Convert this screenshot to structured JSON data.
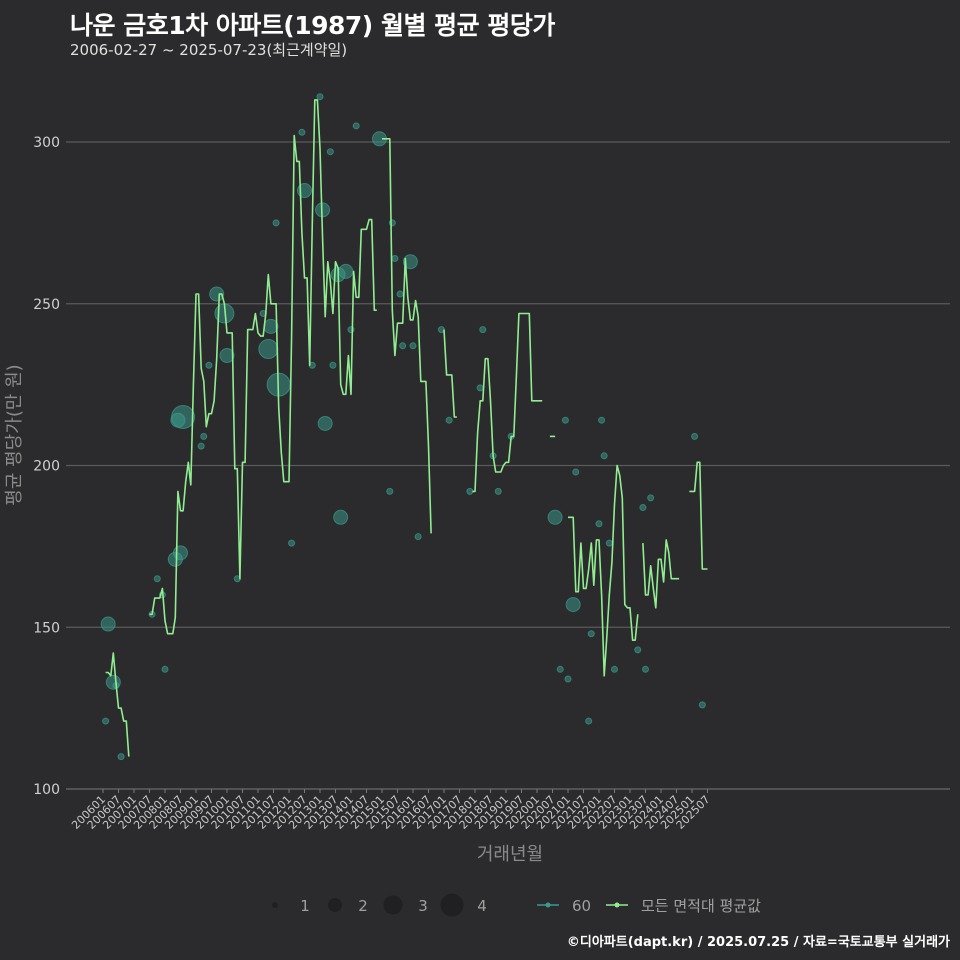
{
  "header": {
    "title": "나운 금호1차 아파트(1987) 월별 평균 평당가",
    "subtitle": "2006-02-27 ~ 2025-07-23(최근계약일)"
  },
  "footer": {
    "credit": "©디아파트(dapt.kr) / 2025.07.25 / 자료=국토교통부 실거래가"
  },
  "colors": {
    "background": "#2b2b2d",
    "grid": "#5a5a5a",
    "line": "#90ee90",
    "points": "#3a9b8c"
  },
  "chart_data": {
    "type": "line",
    "xlabel": "거래년월",
    "ylabel": "평균 평당가(만 원)",
    "ylim": [
      100,
      315
    ],
    "yticks": [
      100,
      150,
      200,
      250,
      300
    ],
    "x_tick_labels": [
      "200601",
      "200607",
      "200701",
      "200707",
      "200801",
      "200807",
      "200901",
      "200907",
      "201001",
      "201007",
      "201101",
      "201107",
      "201201",
      "201207",
      "201301",
      "201307",
      "201401",
      "201407",
      "201501",
      "201507",
      "201601",
      "201607",
      "201701",
      "201707",
      "201801",
      "201807",
      "201901",
      "201907",
      "202001",
      "202007",
      "202101",
      "202107",
      "202201",
      "202207",
      "202301",
      "202307",
      "202401",
      "202407",
      "202501",
      "202507"
    ],
    "legend": {
      "size_title": "",
      "sizes": [
        {
          "label": "1",
          "size": 1
        },
        {
          "label": "2",
          "size": 2
        },
        {
          "label": "3",
          "size": 3
        },
        {
          "label": "4",
          "size": 4
        }
      ],
      "series": [
        {
          "label": "60"
        },
        {
          "label": "모든 면적대 평균값"
        }
      ]
    },
    "points": [
      {
        "x": "2006-02",
        "y": 121,
        "n": 1
      },
      {
        "x": "2006-03",
        "y": 151,
        "n": 2
      },
      {
        "x": "2006-05",
        "y": 133,
        "n": 2
      },
      {
        "x": "2006-06",
        "y": 132,
        "n": 1
      },
      {
        "x": "2006-08",
        "y": 110,
        "n": 1
      },
      {
        "x": "2007-08",
        "y": 154,
        "n": 1
      },
      {
        "x": "2007-10",
        "y": 165,
        "n": 1
      },
      {
        "x": "2007-12",
        "y": 160,
        "n": 1
      },
      {
        "x": "2008-01",
        "y": 137,
        "n": 1
      },
      {
        "x": "2008-05",
        "y": 171,
        "n": 2
      },
      {
        "x": "2008-06",
        "y": 214,
        "n": 2
      },
      {
        "x": "2008-07",
        "y": 173,
        "n": 2
      },
      {
        "x": "2008-08",
        "y": 215,
        "n": 4
      },
      {
        "x": "2009-03",
        "y": 206,
        "n": 1
      },
      {
        "x": "2009-04",
        "y": 209,
        "n": 1
      },
      {
        "x": "2009-06",
        "y": 231,
        "n": 1
      },
      {
        "x": "2009-09",
        "y": 253,
        "n": 2
      },
      {
        "x": "2009-12",
        "y": 247,
        "n": 3
      },
      {
        "x": "2010-01",
        "y": 234,
        "n": 2
      },
      {
        "x": "2010-05",
        "y": 165,
        "n": 1
      },
      {
        "x": "2011-03",
        "y": 247,
        "n": 1
      },
      {
        "x": "2011-05",
        "y": 236,
        "n": 3
      },
      {
        "x": "2011-06",
        "y": 243,
        "n": 2
      },
      {
        "x": "2011-08",
        "y": 275,
        "n": 1
      },
      {
        "x": "2011-09",
        "y": 225,
        "n": 4
      },
      {
        "x": "2012-02",
        "y": 176,
        "n": 1
      },
      {
        "x": "2012-06",
        "y": 303,
        "n": 1
      },
      {
        "x": "2012-07",
        "y": 285,
        "n": 2
      },
      {
        "x": "2012-10",
        "y": 231,
        "n": 1
      },
      {
        "x": "2013-01",
        "y": 314,
        "n": 1
      },
      {
        "x": "2013-02",
        "y": 279,
        "n": 2
      },
      {
        "x": "2013-03",
        "y": 213,
        "n": 2
      },
      {
        "x": "2013-05",
        "y": 297,
        "n": 1
      },
      {
        "x": "2013-06",
        "y": 231,
        "n": 1
      },
      {
        "x": "2013-08",
        "y": 259,
        "n": 2
      },
      {
        "x": "2013-09",
        "y": 184,
        "n": 2
      },
      {
        "x": "2013-11",
        "y": 260,
        "n": 2
      },
      {
        "x": "2014-01",
        "y": 242,
        "n": 1
      },
      {
        "x": "2014-03",
        "y": 305,
        "n": 1
      },
      {
        "x": "2014-12",
        "y": 301,
        "n": 2
      },
      {
        "x": "2015-04",
        "y": 192,
        "n": 1
      },
      {
        "x": "2015-05",
        "y": 275,
        "n": 1
      },
      {
        "x": "2015-06",
        "y": 264,
        "n": 1
      },
      {
        "x": "2015-08",
        "y": 253,
        "n": 1
      },
      {
        "x": "2015-09",
        "y": 237,
        "n": 1
      },
      {
        "x": "2015-12",
        "y": 263,
        "n": 2
      },
      {
        "x": "2016-01",
        "y": 237,
        "n": 1
      },
      {
        "x": "2016-03",
        "y": 178,
        "n": 1
      },
      {
        "x": "2016-12",
        "y": 242,
        "n": 1
      },
      {
        "x": "2017-03",
        "y": 214,
        "n": 1
      },
      {
        "x": "2017-11",
        "y": 192,
        "n": 1
      },
      {
        "x": "2018-03",
        "y": 224,
        "n": 1
      },
      {
        "x": "2018-04",
        "y": 242,
        "n": 1
      },
      {
        "x": "2018-08",
        "y": 203,
        "n": 1
      },
      {
        "x": "2018-10",
        "y": 192,
        "n": 1
      },
      {
        "x": "2019-03",
        "y": 209,
        "n": 1
      },
      {
        "x": "2020-08",
        "y": 184,
        "n": 2
      },
      {
        "x": "2020-10",
        "y": 137,
        "n": 1
      },
      {
        "x": "2020-12",
        "y": 214,
        "n": 1
      },
      {
        "x": "2021-01",
        "y": 134,
        "n": 1
      },
      {
        "x": "2021-03",
        "y": 157,
        "n": 2
      },
      {
        "x": "2021-04",
        "y": 198,
        "n": 1
      },
      {
        "x": "2021-09",
        "y": 121,
        "n": 1
      },
      {
        "x": "2021-10",
        "y": 148,
        "n": 1
      },
      {
        "x": "2022-01",
        "y": 182,
        "n": 1
      },
      {
        "x": "2022-02",
        "y": 214,
        "n": 1
      },
      {
        "x": "2022-03",
        "y": 203,
        "n": 1
      },
      {
        "x": "2022-05",
        "y": 176,
        "n": 1
      },
      {
        "x": "2022-07",
        "y": 137,
        "n": 1
      },
      {
        "x": "2023-04",
        "y": 143,
        "n": 1
      },
      {
        "x": "2023-06",
        "y": 187,
        "n": 1
      },
      {
        "x": "2023-07",
        "y": 137,
        "n": 1
      },
      {
        "x": "2023-09",
        "y": 190,
        "n": 1
      },
      {
        "x": "2025-02",
        "y": 209,
        "n": 1
      },
      {
        "x": "2025-05",
        "y": 126,
        "n": 1
      }
    ],
    "line_segments": [
      [
        [
          "2006-02",
          136
        ],
        [
          "2006-03",
          136
        ],
        [
          "2006-04",
          135
        ],
        [
          "2006-05",
          142
        ],
        [
          "2006-06",
          133
        ],
        [
          "2006-07",
          125
        ],
        [
          "2006-08",
          125
        ],
        [
          "2006-09",
          121
        ],
        [
          "2006-10",
          121
        ],
        [
          "2006-11",
          110
        ]
      ],
      [
        [
          "2007-07",
          154
        ],
        [
          "2007-08",
          154
        ],
        [
          "2007-09",
          159
        ],
        [
          "2007-10",
          159
        ],
        [
          "2007-11",
          159
        ],
        [
          "2007-12",
          162
        ],
        [
          "2008-01",
          152
        ],
        [
          "2008-02",
          148
        ],
        [
          "2008-03",
          148
        ],
        [
          "2008-04",
          148
        ],
        [
          "2008-05",
          153
        ],
        [
          "2008-06",
          192
        ],
        [
          "2008-07",
          186
        ],
        [
          "2008-08",
          186
        ],
        [
          "2008-09",
          195
        ],
        [
          "2008-10",
          201
        ],
        [
          "2008-11",
          194
        ],
        [
          "2008-12",
          225
        ],
        [
          "2009-01",
          253
        ],
        [
          "2009-02",
          253
        ],
        [
          "2009-03",
          230
        ],
        [
          "2009-04",
          226
        ],
        [
          "2009-05",
          212
        ],
        [
          "2009-06",
          216
        ],
        [
          "2009-07",
          216
        ],
        [
          "2009-08",
          220
        ],
        [
          "2009-09",
          233
        ],
        [
          "2009-10",
          253
        ],
        [
          "2009-11",
          253
        ],
        [
          "2009-12",
          250
        ],
        [
          "2010-01",
          241
        ],
        [
          "2010-02",
          241
        ],
        [
          "2010-03",
          241
        ],
        [
          "2010-04",
          199
        ],
        [
          "2010-05",
          199
        ],
        [
          "2010-06",
          165
        ],
        [
          "2010-07",
          201
        ],
        [
          "2010-08",
          201
        ],
        [
          "2010-09",
          242
        ],
        [
          "2010-10",
          242
        ],
        [
          "2010-11",
          242
        ],
        [
          "2010-12",
          247
        ],
        [
          "2011-01",
          241
        ],
        [
          "2011-02",
          240
        ],
        [
          "2011-03",
          240
        ],
        [
          "2011-04",
          247
        ],
        [
          "2011-05",
          259
        ],
        [
          "2011-06",
          250
        ],
        [
          "2011-07",
          250
        ],
        [
          "2011-08",
          250
        ],
        [
          "2011-09",
          218
        ],
        [
          "2011-10",
          204
        ],
        [
          "2011-11",
          195
        ],
        [
          "2011-12",
          195
        ],
        [
          "2012-01",
          195
        ],
        [
          "2012-02",
          240
        ],
        [
          "2012-03",
          302
        ],
        [
          "2012-04",
          294
        ],
        [
          "2012-05",
          294
        ],
        [
          "2012-06",
          272
        ],
        [
          "2012-07",
          258
        ],
        [
          "2012-08",
          258
        ],
        [
          "2012-09",
          231
        ],
        [
          "2012-10",
          275
        ],
        [
          "2012-11",
          313
        ],
        [
          "2012-12",
          313
        ],
        [
          "2013-01",
          298
        ],
        [
          "2013-02",
          270
        ],
        [
          "2013-03",
          246
        ],
        [
          "2013-04",
          263
        ],
        [
          "2013-05",
          257
        ],
        [
          "2013-06",
          247
        ],
        [
          "2013-07",
          263
        ],
        [
          "2013-08",
          261
        ],
        [
          "2013-09",
          225
        ],
        [
          "2013-10",
          222
        ],
        [
          "2013-11",
          222
        ],
        [
          "2013-12",
          234
        ],
        [
          "2014-01",
          222
        ],
        [
          "2014-02",
          260
        ],
        [
          "2014-03",
          252
        ],
        [
          "2014-04",
          252
        ],
        [
          "2014-05",
          273
        ],
        [
          "2014-06",
          273
        ],
        [
          "2014-07",
          273
        ],
        [
          "2014-08",
          276
        ],
        [
          "2014-09",
          276
        ],
        [
          "2014-10",
          248
        ],
        [
          "2014-11",
          248
        ]
      ],
      [
        [
          "2015-01",
          301
        ],
        [
          "2015-02",
          301
        ],
        [
          "2015-03",
          301
        ],
        [
          "2015-04",
          301
        ],
        [
          "2015-05",
          248
        ],
        [
          "2015-06",
          234
        ],
        [
          "2015-07",
          244
        ],
        [
          "2015-08",
          244
        ],
        [
          "2015-09",
          244
        ],
        [
          "2015-10",
          264
        ],
        [
          "2015-11",
          252
        ],
        [
          "2015-12",
          245
        ],
        [
          "2016-01",
          245
        ],
        [
          "2016-02",
          251
        ],
        [
          "2016-03",
          246
        ],
        [
          "2016-04",
          226
        ],
        [
          "2016-05",
          226
        ],
        [
          "2016-06",
          226
        ],
        [
          "2016-07",
          206
        ],
        [
          "2016-08",
          179
        ]
      ],
      [
        [
          "2017-01",
          242
        ],
        [
          "2017-02",
          228
        ],
        [
          "2017-03",
          228
        ],
        [
          "2017-04",
          228
        ],
        [
          "2017-05",
          215
        ],
        [
          "2017-06",
          215
        ]
      ],
      [
        [
          "2017-12",
          192
        ],
        [
          "2018-01",
          192
        ],
        [
          "2018-02",
          210
        ],
        [
          "2018-03",
          220
        ],
        [
          "2018-04",
          220
        ],
        [
          "2018-05",
          233
        ],
        [
          "2018-06",
          233
        ],
        [
          "2018-07",
          220
        ],
        [
          "2018-08",
          203
        ],
        [
          "2018-09",
          198
        ],
        [
          "2018-10",
          198
        ],
        [
          "2018-11",
          198
        ],
        [
          "2018-12",
          200
        ],
        [
          "2019-01",
          201
        ],
        [
          "2019-02",
          201
        ],
        [
          "2019-03",
          209
        ],
        [
          "2019-04",
          209
        ],
        [
          "2019-05",
          227
        ],
        [
          "2019-06",
          247
        ],
        [
          "2019-07",
          247
        ],
        [
          "2019-08",
          247
        ],
        [
          "2019-09",
          247
        ],
        [
          "2019-10",
          247
        ],
        [
          "2019-11",
          220
        ],
        [
          "2019-12",
          220
        ],
        [
          "2020-01",
          220
        ],
        [
          "2020-02",
          220
        ],
        [
          "2020-03",
          220
        ]
      ],
      [
        [
          "2020-06",
          209
        ],
        [
          "2020-07",
          209
        ],
        [
          "2020-08",
          209
        ]
      ],
      [
        [
          "2021-01",
          184
        ],
        [
          "2021-02",
          184
        ],
        [
          "2021-03",
          184
        ],
        [
          "2021-04",
          161
        ],
        [
          "2021-05",
          161
        ],
        [
          "2021-06",
          176
        ],
        [
          "2021-07",
          162
        ],
        [
          "2021-08",
          162
        ],
        [
          "2021-09",
          168
        ],
        [
          "2021-10",
          176
        ],
        [
          "2021-11",
          163
        ],
        [
          "2021-12",
          177
        ],
        [
          "2022-01",
          177
        ],
        [
          "2022-02",
          160
        ],
        [
          "2022-03",
          135
        ],
        [
          "2022-04",
          147
        ],
        [
          "2022-05",
          160
        ],
        [
          "2022-06",
          170
        ],
        [
          "2022-07",
          188
        ],
        [
          "2022-08",
          200
        ],
        [
          "2022-09",
          197
        ],
        [
          "2022-10",
          190
        ],
        [
          "2022-11",
          157
        ],
        [
          "2022-12",
          156
        ],
        [
          "2023-01",
          156
        ],
        [
          "2023-02",
          146
        ],
        [
          "2023-03",
          146
        ],
        [
          "2023-04",
          154
        ]
      ],
      [
        [
          "2023-06",
          176
        ],
        [
          "2023-07",
          160
        ],
        [
          "2023-08",
          160
        ],
        [
          "2023-09",
          169
        ],
        [
          "2023-10",
          162
        ],
        [
          "2023-11",
          156
        ],
        [
          "2023-12",
          171
        ],
        [
          "2024-01",
          171
        ],
        [
          "2024-02",
          164
        ],
        [
          "2024-03",
          177
        ],
        [
          "2024-04",
          173
        ],
        [
          "2024-05",
          165
        ],
        [
          "2024-06",
          165
        ],
        [
          "2024-07",
          165
        ],
        [
          "2024-08",
          165
        ]
      ],
      [
        [
          "2024-12",
          192
        ],
        [
          "2025-01",
          192
        ],
        [
          "2025-02",
          192
        ],
        [
          "2025-03",
          201
        ],
        [
          "2025-04",
          201
        ],
        [
          "2025-05",
          168
        ],
        [
          "2025-06",
          168
        ],
        [
          "2025-07",
          168
        ]
      ]
    ]
  }
}
